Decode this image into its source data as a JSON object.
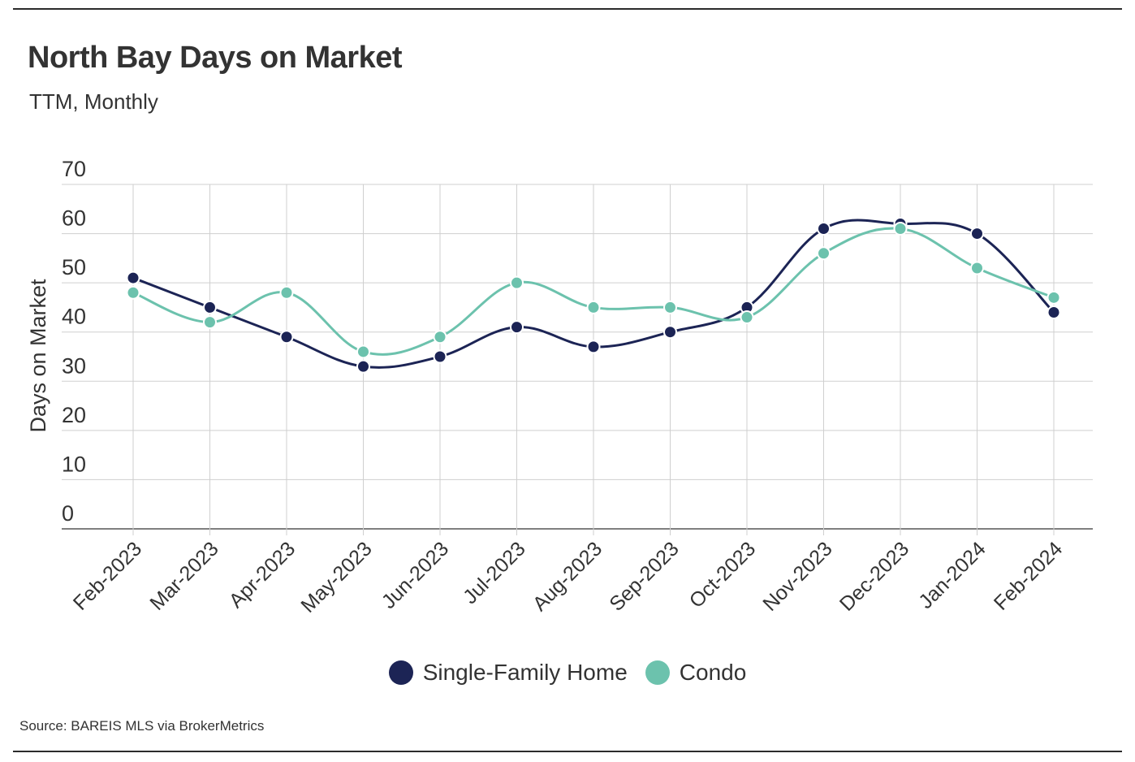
{
  "chart_data": {
    "type": "line",
    "title": "North Bay Days on Market",
    "subtitle": "TTM, Monthly",
    "ylabel": "Days on Market",
    "xlabel": "",
    "ylim": [
      0,
      70
    ],
    "yticks": [
      0,
      10,
      20,
      30,
      40,
      50,
      60,
      70
    ],
    "categories": [
      "Feb-2023",
      "Mar-2023",
      "Apr-2023",
      "May-2023",
      "Jun-2023",
      "Jul-2023",
      "Aug-2023",
      "Sep-2023",
      "Oct-2023",
      "Nov-2023",
      "Dec-2023",
      "Jan-2024",
      "Feb-2024"
    ],
    "series": [
      {
        "name": "Single-Family Home",
        "color": "#1c2455",
        "values": [
          51,
          45,
          39,
          33,
          35,
          41,
          37,
          40,
          45,
          61,
          62,
          60,
          44
        ]
      },
      {
        "name": "Condo",
        "color": "#6cc2ad",
        "values": [
          48,
          42,
          48,
          36,
          39,
          50,
          45,
          45,
          43,
          56,
          61,
          53,
          47
        ]
      }
    ],
    "grid": true,
    "legend_position": "bottom-center",
    "smooth": true
  },
  "source": "Source:  BAREIS MLS via BrokerMetrics"
}
